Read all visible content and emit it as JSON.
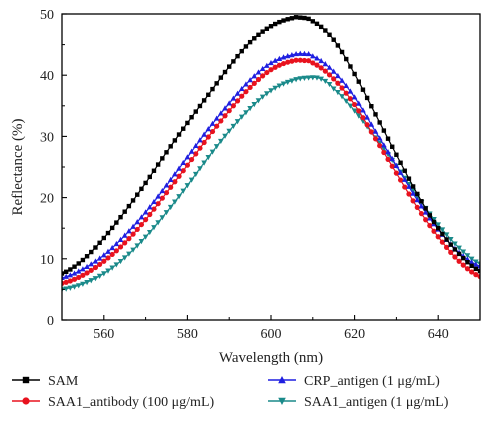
{
  "chart_data": {
    "type": "line",
    "title": "",
    "xlabel": "Wavelength (nm)",
    "ylabel": "Reflectance (%)",
    "xlim": [
      550,
      650
    ],
    "ylim": [
      0,
      50
    ],
    "xticks": [
      560,
      580,
      600,
      620,
      640
    ],
    "yticks": [
      0,
      10,
      20,
      30,
      40,
      50
    ],
    "legend_position": "bottom, outside plot, two columns",
    "series": [
      {
        "name": "SAM",
        "color": "#000000",
        "marker": "square",
        "x": [
          550,
          555,
          560,
          565,
          570,
          575,
          580,
          585,
          590,
          595,
          600,
          605,
          607,
          610,
          615,
          620,
          625,
          630,
          635,
          640,
          645,
          650
        ],
        "y": [
          7.6,
          9.8,
          13.4,
          17.7,
          22.4,
          27.4,
          32.2,
          36.8,
          41.4,
          45.4,
          48.0,
          49.3,
          49.4,
          48.8,
          45.8,
          40.2,
          33.6,
          27.0,
          20.6,
          15.0,
          10.8,
          8.0
        ]
      },
      {
        "name": "SAA1_antibody (100 μg/mL)",
        "color": "#e8121e",
        "marker": "circle",
        "x": [
          550,
          555,
          560,
          565,
          570,
          575,
          580,
          585,
          590,
          595,
          600,
          605,
          608,
          610,
          615,
          620,
          625,
          630,
          635,
          640,
          645,
          650
        ],
        "y": [
          6.0,
          7.3,
          9.6,
          12.6,
          16.4,
          20.8,
          25.3,
          29.9,
          34.2,
          38.0,
          40.9,
          42.3,
          42.4,
          42.0,
          39.4,
          35.2,
          29.6,
          24.0,
          18.4,
          13.6,
          9.6,
          7.1
        ]
      },
      {
        "name": "CRP_antigen (1 μg/mL)",
        "color": "#1f1fe0",
        "marker": "triangle-up",
        "x": [
          550,
          555,
          560,
          565,
          570,
          575,
          580,
          585,
          590,
          595,
          600,
          605,
          608,
          610,
          615,
          620,
          625,
          630,
          635,
          640,
          645,
          650
        ],
        "y": [
          6.9,
          8.3,
          10.6,
          13.8,
          17.6,
          22.0,
          26.6,
          31.2,
          35.4,
          39.2,
          42.0,
          43.3,
          43.5,
          43.1,
          40.6,
          36.4,
          30.8,
          25.2,
          19.6,
          14.8,
          11.0,
          8.8
        ]
      },
      {
        "name": "SAA1_antigen (1 μg/mL)",
        "color": "#1a8a8a",
        "marker": "triangle-down",
        "x": [
          550,
          555,
          560,
          565,
          570,
          575,
          580,
          585,
          590,
          595,
          600,
          605,
          609,
          612,
          615,
          620,
          625,
          630,
          635,
          640,
          645,
          650
        ],
        "y": [
          5.0,
          5.9,
          7.6,
          10.2,
          13.6,
          17.6,
          22.0,
          26.6,
          30.9,
          34.6,
          37.5,
          39.1,
          39.6,
          39.4,
          37.8,
          34.2,
          29.8,
          25.2,
          20.2,
          15.6,
          11.8,
          9.2
        ]
      }
    ]
  }
}
